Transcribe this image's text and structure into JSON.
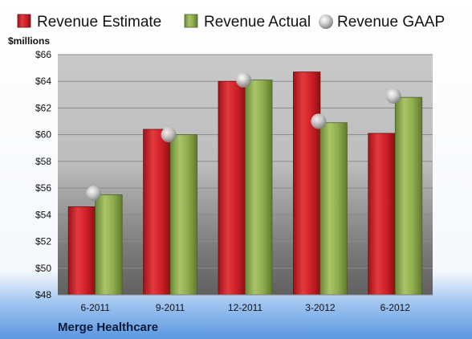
{
  "chart_data": {
    "type": "bar",
    "categories": [
      "6-2011",
      "9-2011",
      "12-2011",
      "3-2012",
      "6-2012"
    ],
    "series": [
      {
        "name": "Revenue Estimate",
        "color": "#d21f26",
        "values": [
          54.6,
          60.4,
          64.0,
          64.7,
          60.1
        ]
      },
      {
        "name": "Revenue Actual",
        "color": "#8fae4e",
        "values": [
          55.5,
          60.0,
          64.1,
          60.9,
          62.8
        ]
      },
      {
        "name": "Revenue GAAP",
        "color": "#c8c8c8",
        "marker": "sphere",
        "values": [
          55.6,
          60.0,
          64.1,
          61.0,
          62.9
        ]
      }
    ],
    "ylabel": "$millions",
    "ylim": [
      48,
      66
    ],
    "yticks": [
      "$48",
      "$50",
      "$52",
      "$54",
      "$56",
      "$58",
      "$60",
      "$62",
      "$64",
      "$66"
    ],
    "grid": true,
    "legend": "top"
  },
  "footer": {
    "company": "Merge Healthcare"
  }
}
